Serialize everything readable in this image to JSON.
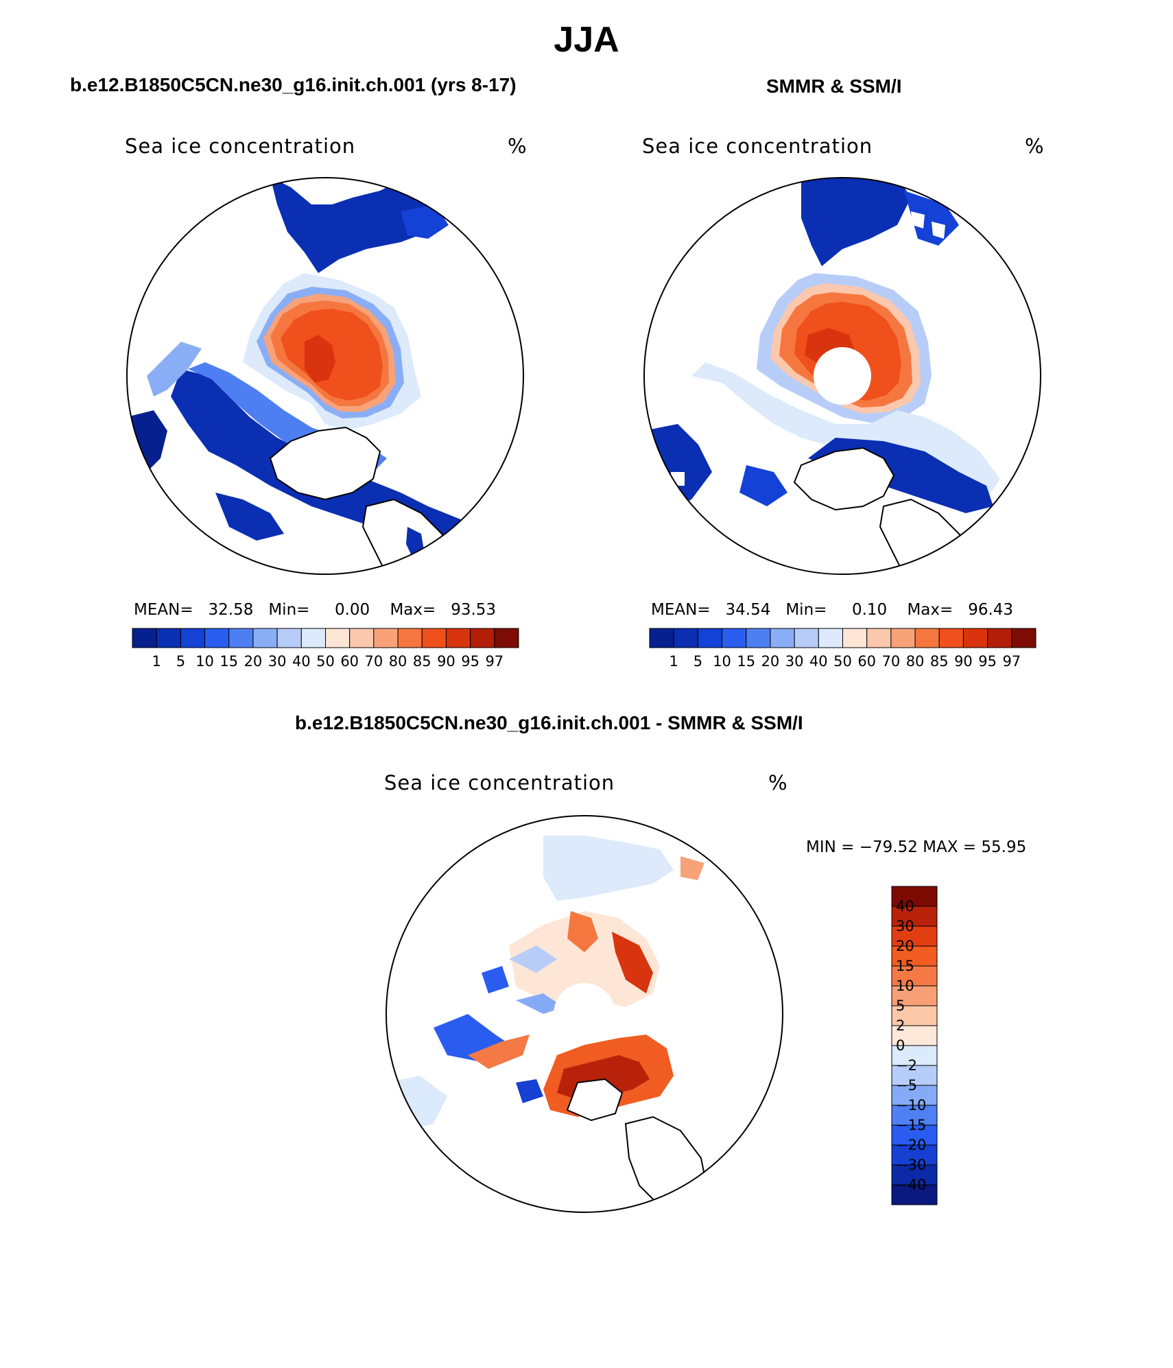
{
  "figure": {
    "title": "JJA"
  },
  "palette": {
    "conc_colors": [
      "#07208f",
      "#0a2fb3",
      "#1441d6",
      "#2a5ef0",
      "#4e7ff2",
      "#8aaef5",
      "#b7cdf8",
      "#dceafb",
      "#fde6d6",
      "#fbc8ad",
      "#f8a27a",
      "#f5773f",
      "#f0501b",
      "#d8340f",
      "#b31e08",
      "#7c0c04"
    ],
    "diff_colors": [
      "#0a1880",
      "#0c2aa6",
      "#1540d2",
      "#2a5cf0",
      "#5080f3",
      "#86abf6",
      "#b6cdf9",
      "#dbeafc",
      "#fde8da",
      "#fbc8aa",
      "#f7a077",
      "#f47945",
      "#f05c22",
      "#e13f12",
      "#b9220a",
      "#7d0b04"
    ],
    "land": "#ffffff",
    "ocean": "#ffffff"
  },
  "panels": [
    {
      "title": "b.e12.B1850C5CN.ne30_g16.init.ch.001 (yrs 8-17)",
      "variable": "Sea ice concentration",
      "units": "%",
      "mean_label": "MEAN=",
      "mean": "32.58",
      "min_label": "Min=",
      "min": "0.00",
      "max_label": "Max=",
      "max": "93.53",
      "colorbar_ticks": [
        "1",
        "5",
        "10",
        "15",
        "20",
        "30",
        "40",
        "50",
        "60",
        "70",
        "80",
        "85",
        "90",
        "95",
        "97"
      ]
    },
    {
      "title": "SMMR & SSM/I",
      "variable": "Sea ice concentration",
      "units": "%",
      "mean_label": "MEAN=",
      "mean": "34.54",
      "min_label": "Min=",
      "min": "0.10",
      "max_label": "Max=",
      "max": "96.43",
      "colorbar_ticks": [
        "1",
        "5",
        "10",
        "15",
        "20",
        "30",
        "40",
        "50",
        "60",
        "70",
        "80",
        "85",
        "90",
        "95",
        "97"
      ]
    }
  ],
  "diff_panel": {
    "title": "b.e12.B1850C5CN.ne30_g16.init.ch.001 - SMMR & SSM/I",
    "variable": "Sea ice concentration",
    "units": "%",
    "min_max_text": "MIN = −79.52 MAX =   55.95",
    "colorbar_ticks": [
      "40",
      "30",
      "20",
      "15",
      "10",
      "5",
      "2",
      "0",
      "−2",
      "−5",
      "−10",
      "−15",
      "−20",
      "−30",
      "−40"
    ]
  },
  "chart_data": [
    {
      "type": "heatmap",
      "title": "b.e12.B1850C5CN.ne30_g16.init.ch.001 (yrs 8-17)",
      "projection": "north polar stereographic",
      "variable": "Sea ice concentration",
      "units": "%",
      "mean": 32.58,
      "min": 0.0,
      "max": 93.53,
      "levels": [
        1,
        5,
        10,
        15,
        20,
        30,
        40,
        50,
        60,
        70,
        80,
        85,
        90,
        95,
        97
      ]
    },
    {
      "type": "heatmap",
      "title": "SMMR & SSM/I",
      "projection": "north polar stereographic",
      "variable": "Sea ice concentration",
      "units": "%",
      "mean": 34.54,
      "min": 0.1,
      "max": 96.43,
      "levels": [
        1,
        5,
        10,
        15,
        20,
        30,
        40,
        50,
        60,
        70,
        80,
        85,
        90,
        95,
        97
      ],
      "pole_hole": true
    },
    {
      "type": "heatmap",
      "title": "b.e12.B1850C5CN.ne30_g16.init.ch.001 - SMMR & SSM/I",
      "projection": "north polar stereographic",
      "variable": "Sea ice concentration",
      "units": "%",
      "min": -79.52,
      "max": 55.95,
      "levels": [
        -40,
        -30,
        -20,
        -15,
        -10,
        -5,
        -2,
        0,
        2,
        5,
        10,
        15,
        20,
        30,
        40
      ],
      "pole_hole": true
    }
  ]
}
